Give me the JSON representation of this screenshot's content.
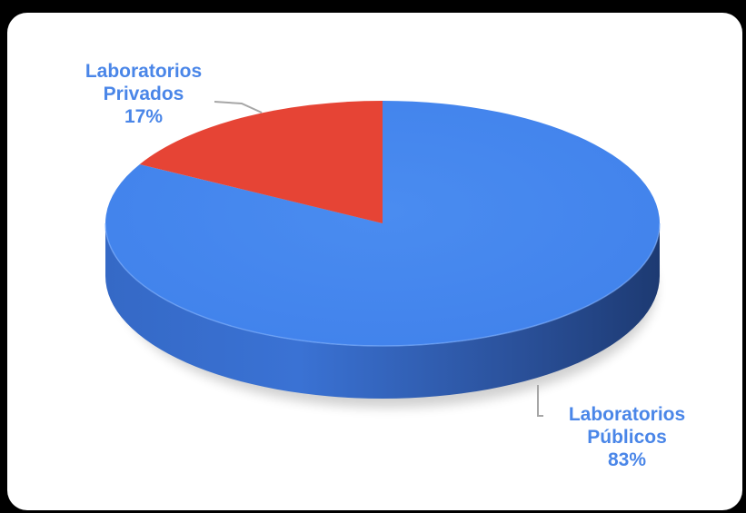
{
  "chart_data": {
    "type": "pie",
    "style": "3d",
    "title": "",
    "slices": [
      {
        "label_line1": "Laboratorios",
        "label_line2": "Públicos",
        "percent_label": "83%",
        "value": 83,
        "color": "#4283ec",
        "label_color": "#4a86e8"
      },
      {
        "label_line1": "Laboratorios",
        "label_line2": "Privados",
        "percent_label": "17%",
        "value": 17,
        "color": "#e64435",
        "label_color": "#4a86e8"
      }
    ]
  },
  "colors": {
    "page_background": "#000000",
    "frame_background": "#ffffff",
    "leader_line": "#a6a6a6",
    "side_dark": "#1d3a72",
    "side_light": "#3569c6"
  }
}
